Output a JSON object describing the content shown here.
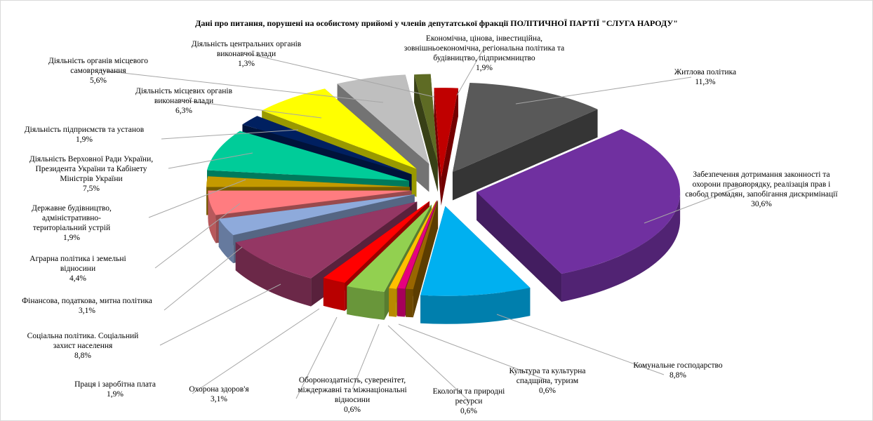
{
  "chart_data": {
    "type": "pie",
    "title": "Дані про питання, порушені на особистому прийомі у членів депутатської фракції  ПОЛІТИЧНОЇ ПАРТІЇ \"СЛУГА НАРОДУ\"",
    "slices": [
      {
        "label": "Економічна, цінова, інвестиційна, зовнішньоекономічна, регіональна політика та будівництво, підприємництво",
        "value": 1.9,
        "display": "1,9%",
        "color": "#c00000"
      },
      {
        "label": "Житлова політика",
        "value": 11.3,
        "display": "11,3%",
        "color": "#595959"
      },
      {
        "label": "Забезпечення дотримання законності та охорони правопорядку, реалізація  прав і свобод громадян, запобігання дискримінації",
        "value": 30.6,
        "display": "30,6%",
        "color": "#7030a0"
      },
      {
        "label": "Комунальне господарство",
        "value": 8.8,
        "display": "8,8%",
        "color": "#00b0f0"
      },
      {
        "label": "Культура та культурна спадщина, туризм",
        "value": 0.6,
        "display": "0,6%",
        "color": "#996600"
      },
      {
        "label": "Екологія та природні ресурси",
        "value": 0.6,
        "display": "0,6%",
        "color": "#e6007e"
      },
      {
        "label": "Обороноздатність, суверенітет, міждержавні та міжнаціональні відносини",
        "value": 0.6,
        "display": "0,6%",
        "color": "#ffc000"
      },
      {
        "label": "Охорона здоров'я",
        "value": 3.1,
        "display": "3,1%",
        "color": "#92d050"
      },
      {
        "label": "Праця і заробітна плата",
        "value": 1.9,
        "display": "1,9%",
        "color": "#ff0000"
      },
      {
        "label": "Соціальна політика. Соціальний захист населення",
        "value": 8.8,
        "display": "8,8%",
        "color": "#943764"
      },
      {
        "label": "Фінансова, податкова, митна політика",
        "value": 3.1,
        "display": "3,1%",
        "color": "#8eaadb"
      },
      {
        "label": "Аграрна політика і земельні відносини",
        "value": 4.4,
        "display": "4,4%",
        "color": "#ff7c80"
      },
      {
        "label": "Державне будівництво, адміністративно-територіальний устрій",
        "value": 1.9,
        "display": "1,9%",
        "color": "#c49a00"
      },
      {
        "label": "Діяльність Верховної Ради України, Президента України та Кабінету Міністрів  України",
        "value": 7.5,
        "display": "7,5%",
        "color": "#00cc99"
      },
      {
        "label": "Діяльність підприємств та установ",
        "value": 1.9,
        "display": "1,9%",
        "color": "#002060"
      },
      {
        "label": "Діяльність місцевих органів виконавчої влади",
        "value": 6.3,
        "display": "6,3%",
        "color": "#ffff00"
      },
      {
        "label": "Діяльність органів місцевого самоврядування",
        "value": 5.6,
        "display": "5,6%",
        "color": "#bfbfbf"
      },
      {
        "label": "Діяльність центральних органів виконавчої влади",
        "value": 1.3,
        "display": "1,3%",
        "color": "#5e6b24"
      }
    ]
  }
}
